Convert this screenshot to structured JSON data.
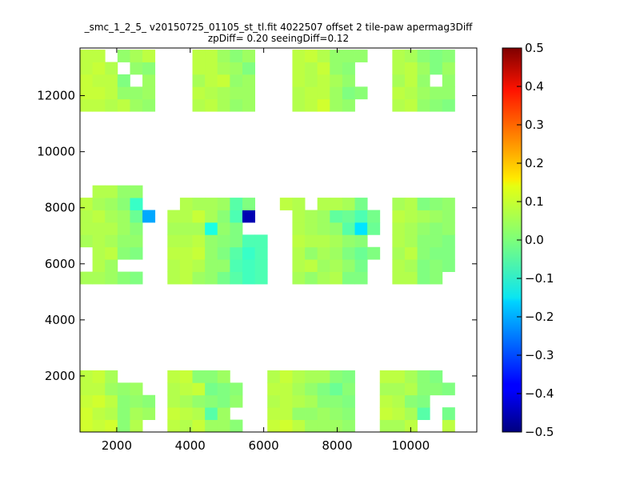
{
  "chart_data": {
    "type": "heatmap",
    "title": "_smc_1_2_5_ v20150725_01105_st_tl.fit 4022507 offset 2 tile-paw apermag3Diff",
    "subtitle": "zpDiff= 0.20 seeingDiff=0.12",
    "xlabel": "",
    "ylabel": "",
    "xlim": [
      1000,
      11800
    ],
    "ylim": [
      0,
      13700
    ],
    "x_ticks": [
      "2000",
      "4000",
      "6000",
      "8000",
      "10000"
    ],
    "y_ticks": [
      "2000",
      "4000",
      "6000",
      "8000",
      "10000",
      "12000"
    ],
    "grid": false,
    "colorbar": {
      "min": -0.5,
      "max": 0.5,
      "ticks": [
        "0.5",
        "0.4",
        "0.3",
        "0.2",
        "0.1",
        "0.0",
        "−0.1",
        "−0.2",
        "−0.3",
        "−0.4",
        "−0.5"
      ],
      "colormap": "jet"
    },
    "cell_width": 340,
    "cell_height": 440,
    "x_bins": [
      1000,
      1340,
      1680,
      2020,
      2360,
      2700,
      3040,
      3380,
      3720,
      4060,
      4400,
      4740,
      5080,
      5420,
      5760,
      6100,
      6440,
      6780,
      7120,
      7460,
      7800,
      8140,
      8480,
      8820,
      9160,
      9500,
      9840,
      10180,
      10520,
      10860,
      11200,
      11540
    ],
    "y_bins": [
      0,
      440,
      880,
      1320,
      1760,
      2200,
      2640,
      3080,
      3520,
      3960,
      4400,
      4840,
      5280,
      5720,
      6160,
      6600,
      7040,
      7480,
      7920,
      8360,
      8800,
      9240,
      9680,
      10120,
      10560,
      11000,
      11440,
      11880,
      12320,
      12760,
      13200
    ],
    "values": [
      [
        0.08,
        0.07,
        0.08,
        0.01,
        0.05,
        null,
        null,
        0.06,
        0.05,
        0.07,
        0.03,
        0.03,
        0.01,
        null,
        null,
        0.07,
        0.08,
        0.06,
        0.03,
        0.03,
        0.03,
        0.02,
        null,
        null,
        0.04,
        0.04,
        0.06,
        null,
        null,
        0.06,
        null
      ],
      [
        0.08,
        0.06,
        0.05,
        0.01,
        0.04,
        0.03,
        null,
        0.07,
        0.06,
        0.05,
        -0.04,
        0.03,
        null,
        null,
        null,
        0.06,
        0.06,
        0.02,
        0.02,
        0.03,
        0.02,
        0.01,
        null,
        null,
        0.07,
        0.06,
        0.04,
        -0.04,
        null,
        -0.01,
        null
      ],
      [
        0.07,
        0.08,
        0.06,
        0.01,
        0.02,
        0.01,
        null,
        0.05,
        0.04,
        0.02,
        0.01,
        0.0,
        0.02,
        null,
        null,
        0.05,
        0.06,
        0.05,
        0.04,
        0.01,
        0.01,
        0.0,
        null,
        null,
        0.06,
        0.05,
        0.01,
        0.0,
        null,
        null,
        null
      ],
      [
        0.06,
        0.06,
        0.03,
        0.02,
        0.03,
        null,
        null,
        0.05,
        0.06,
        0.07,
        -0.01,
        0.0,
        0.01,
        null,
        null,
        0.06,
        0.06,
        0.04,
        0.02,
        0.0,
        -0.02,
        0.01,
        null,
        null,
        0.04,
        0.04,
        0.05,
        0.01,
        0.01,
        0.0,
        null
      ],
      [
        0.06,
        0.07,
        0.04,
        null,
        null,
        null,
        null,
        0.06,
        0.07,
        0.01,
        0.01,
        0.03,
        null,
        null,
        null,
        0.05,
        0.07,
        0.05,
        0.04,
        0.04,
        0.01,
        0.0,
        null,
        null,
        0.06,
        0.06,
        0.04,
        0.01,
        0.0,
        null,
        null
      ],
      [
        null,
        null,
        null,
        null,
        null,
        null,
        null,
        null,
        null,
        null,
        null,
        null,
        null,
        null,
        null,
        null,
        null,
        null,
        null,
        null,
        null,
        null,
        null,
        null,
        null,
        null,
        null,
        null,
        null,
        null,
        null
      ],
      [
        null,
        null,
        null,
        null,
        null,
        null,
        null,
        null,
        null,
        null,
        null,
        null,
        null,
        null,
        null,
        null,
        null,
        null,
        null,
        null,
        null,
        null,
        null,
        null,
        null,
        null,
        null,
        null,
        null,
        null,
        null
      ],
      [
        null,
        null,
        null,
        null,
        null,
        null,
        null,
        null,
        null,
        null,
        null,
        null,
        null,
        null,
        null,
        null,
        null,
        null,
        null,
        null,
        null,
        null,
        null,
        null,
        null,
        null,
        null,
        null,
        null,
        null,
        null
      ],
      [
        null,
        null,
        null,
        null,
        null,
        null,
        null,
        null,
        null,
        null,
        null,
        null,
        null,
        null,
        null,
        null,
        null,
        null,
        null,
        null,
        null,
        null,
        null,
        null,
        null,
        null,
        null,
        null,
        null,
        null,
        null
      ],
      [
        null,
        null,
        null,
        null,
        null,
        null,
        null,
        null,
        null,
        null,
        null,
        null,
        null,
        null,
        null,
        null,
        null,
        null,
        null,
        null,
        null,
        null,
        null,
        null,
        null,
        null,
        null,
        null,
        null,
        null,
        null
      ],
      [
        null,
        null,
        null,
        null,
        null,
        null,
        null,
        null,
        null,
        null,
        null,
        null,
        null,
        null,
        null,
        null,
        null,
        null,
        null,
        null,
        null,
        null,
        null,
        null,
        null,
        null,
        null,
        null,
        null,
        null,
        null
      ],
      [
        null,
        null,
        null,
        null,
        null,
        null,
        null,
        null,
        null,
        null,
        null,
        null,
        null,
        null,
        null,
        null,
        null,
        null,
        null,
        null,
        null,
        null,
        null,
        null,
        null,
        null,
        null,
        null,
        null,
        null,
        null
      ],
      [
        0.04,
        0.04,
        0.03,
        0.01,
        0.0,
        null,
        null,
        0.05,
        0.06,
        0.03,
        0.02,
        -0.01,
        -0.04,
        -0.06,
        -0.05,
        null,
        null,
        0.04,
        0.02,
        0.04,
        0.05,
        0.0,
        0.0,
        null,
        null,
        0.05,
        0.05,
        0.0,
        0.01,
        null,
        null
      ],
      [
        null,
        0.05,
        0.03,
        null,
        null,
        null,
        null,
        0.05,
        0.06,
        0.05,
        0.02,
        0.02,
        -0.05,
        -0.06,
        -0.05,
        null,
        null,
        0.05,
        0.06,
        0.03,
        0.04,
        0.02,
        -0.01,
        null,
        null,
        0.05,
        0.04,
        0.0,
        0.01,
        0.0,
        null
      ],
      [
        null,
        0.05,
        0.06,
        0.01,
        0.0,
        null,
        null,
        0.06,
        0.06,
        0.07,
        0.02,
        0.0,
        -0.04,
        -0.07,
        -0.05,
        null,
        null,
        0.05,
        0.02,
        0.04,
        0.03,
        0.0,
        -0.02,
        0.0,
        null,
        0.04,
        0.06,
        0.01,
        0.0,
        0.0,
        null
      ],
      [
        0.04,
        0.05,
        0.04,
        0.02,
        0.02,
        null,
        null,
        0.05,
        0.05,
        0.06,
        0.02,
        0.01,
        0.0,
        -0.05,
        -0.05,
        null,
        null,
        0.06,
        0.05,
        0.05,
        0.04,
        0.02,
        0.01,
        null,
        null,
        0.05,
        0.04,
        0.01,
        0.01,
        0.0,
        null
      ],
      [
        0.05,
        0.05,
        0.05,
        0.03,
        0.01,
        null,
        null,
        0.04,
        0.04,
        0.04,
        -0.1,
        0.02,
        0.0,
        null,
        null,
        null,
        null,
        0.05,
        0.04,
        0.03,
        0.02,
        -0.04,
        -0.15,
        -0.02,
        null,
        0.05,
        0.04,
        0.02,
        0.01,
        0.02,
        null
      ],
      [
        0.05,
        0.06,
        0.04,
        0.03,
        -0.02,
        -0.21,
        null,
        0.05,
        0.05,
        0.07,
        0.04,
        0.01,
        -0.05,
        -0.45,
        null,
        null,
        null,
        0.05,
        0.04,
        0.03,
        -0.03,
        -0.02,
        -0.05,
        -0.01,
        null,
        0.06,
        0.05,
        0.04,
        0.03,
        0.02,
        null
      ],
      [
        0.06,
        0.04,
        0.03,
        0.01,
        -0.07,
        null,
        null,
        null,
        0.05,
        0.04,
        0.04,
        0.03,
        -0.04,
        0.0,
        null,
        null,
        0.06,
        0.05,
        null,
        0.05,
        0.05,
        0.04,
        -0.01,
        null,
        null,
        0.04,
        0.05,
        0.0,
        0.01,
        0.02,
        null
      ],
      [
        null,
        0.05,
        0.05,
        0.02,
        0.02,
        null,
        null,
        null,
        null,
        null,
        null,
        null,
        null,
        null,
        null,
        null,
        null,
        null,
        null,
        null,
        null,
        null,
        null,
        null,
        null,
        null,
        null,
        null,
        null,
        null,
        null
      ],
      [
        null,
        null,
        null,
        null,
        null,
        null,
        null,
        null,
        null,
        null,
        null,
        null,
        null,
        null,
        null,
        null,
        null,
        null,
        null,
        null,
        null,
        null,
        null,
        null,
        null,
        null,
        null,
        null,
        null,
        null,
        null
      ],
      [
        null,
        null,
        null,
        null,
        null,
        null,
        null,
        null,
        null,
        null,
        null,
        null,
        null,
        null,
        null,
        null,
        null,
        null,
        null,
        null,
        null,
        null,
        null,
        null,
        null,
        null,
        null,
        null,
        null,
        null,
        null
      ],
      [
        null,
        null,
        null,
        null,
        null,
        null,
        null,
        null,
        null,
        null,
        null,
        null,
        null,
        null,
        null,
        null,
        null,
        null,
        null,
        null,
        null,
        null,
        null,
        null,
        null,
        null,
        null,
        null,
        null,
        null,
        null
      ],
      [
        null,
        null,
        null,
        null,
        null,
        null,
        null,
        null,
        null,
        null,
        null,
        null,
        null,
        null,
        null,
        null,
        null,
        null,
        null,
        null,
        null,
        null,
        null,
        null,
        null,
        null,
        null,
        null,
        null,
        null,
        null
      ],
      [
        null,
        null,
        null,
        null,
        null,
        null,
        null,
        null,
        null,
        null,
        null,
        null,
        null,
        null,
        null,
        null,
        null,
        null,
        null,
        null,
        null,
        null,
        null,
        null,
        null,
        null,
        null,
        null,
        null,
        null,
        null
      ],
      [
        null,
        null,
        null,
        null,
        null,
        null,
        null,
        null,
        null,
        null,
        null,
        null,
        null,
        null,
        null,
        null,
        null,
        null,
        null,
        null,
        null,
        null,
        null,
        null,
        null,
        null,
        null,
        null,
        null,
        null,
        null
      ],
      [
        0.06,
        0.06,
        0.05,
        0.06,
        0.03,
        0.02,
        null,
        null,
        null,
        0.05,
        0.06,
        0.04,
        0.02,
        0.03,
        null,
        null,
        null,
        0.05,
        0.06,
        0.08,
        0.03,
        0.02,
        null,
        null,
        null,
        0.05,
        0.06,
        0.02,
        0.01,
        0.0,
        null
      ],
      [
        0.07,
        0.07,
        0.06,
        0.02,
        0.02,
        0.03,
        null,
        null,
        null,
        0.06,
        0.05,
        0.04,
        0.03,
        0.03,
        null,
        null,
        null,
        0.05,
        0.06,
        0.06,
        0.03,
        0.0,
        0.01,
        null,
        null,
        0.06,
        0.05,
        0.03,
        0.02,
        0.02,
        null
      ],
      [
        0.07,
        0.06,
        0.06,
        0.0,
        null,
        0.03,
        null,
        null,
        null,
        0.04,
        0.06,
        0.07,
        0.02,
        0.03,
        null,
        null,
        null,
        0.06,
        0.05,
        0.06,
        0.04,
        0.02,
        null,
        null,
        null,
        0.04,
        0.06,
        0.02,
        null,
        0.02,
        null
      ],
      [
        0.06,
        0.07,
        0.05,
        null,
        0.02,
        0.01,
        null,
        null,
        null,
        0.06,
        0.06,
        0.04,
        0.03,
        0.0,
        null,
        null,
        null,
        0.06,
        0.05,
        0.07,
        0.02,
        0.01,
        null,
        null,
        null,
        0.05,
        0.06,
        0.03,
        0.0,
        0.03,
        null
      ],
      [
        0.06,
        0.06,
        null,
        0.02,
        0.04,
        0.06,
        null,
        null,
        null,
        0.06,
        0.06,
        0.03,
        0.01,
        0.03,
        null,
        null,
        null,
        0.06,
        0.07,
        0.05,
        0.02,
        0.02,
        0.02,
        null,
        null,
        0.05,
        0.04,
        0.01,
        0.0,
        0.01,
        null
      ]
    ]
  }
}
